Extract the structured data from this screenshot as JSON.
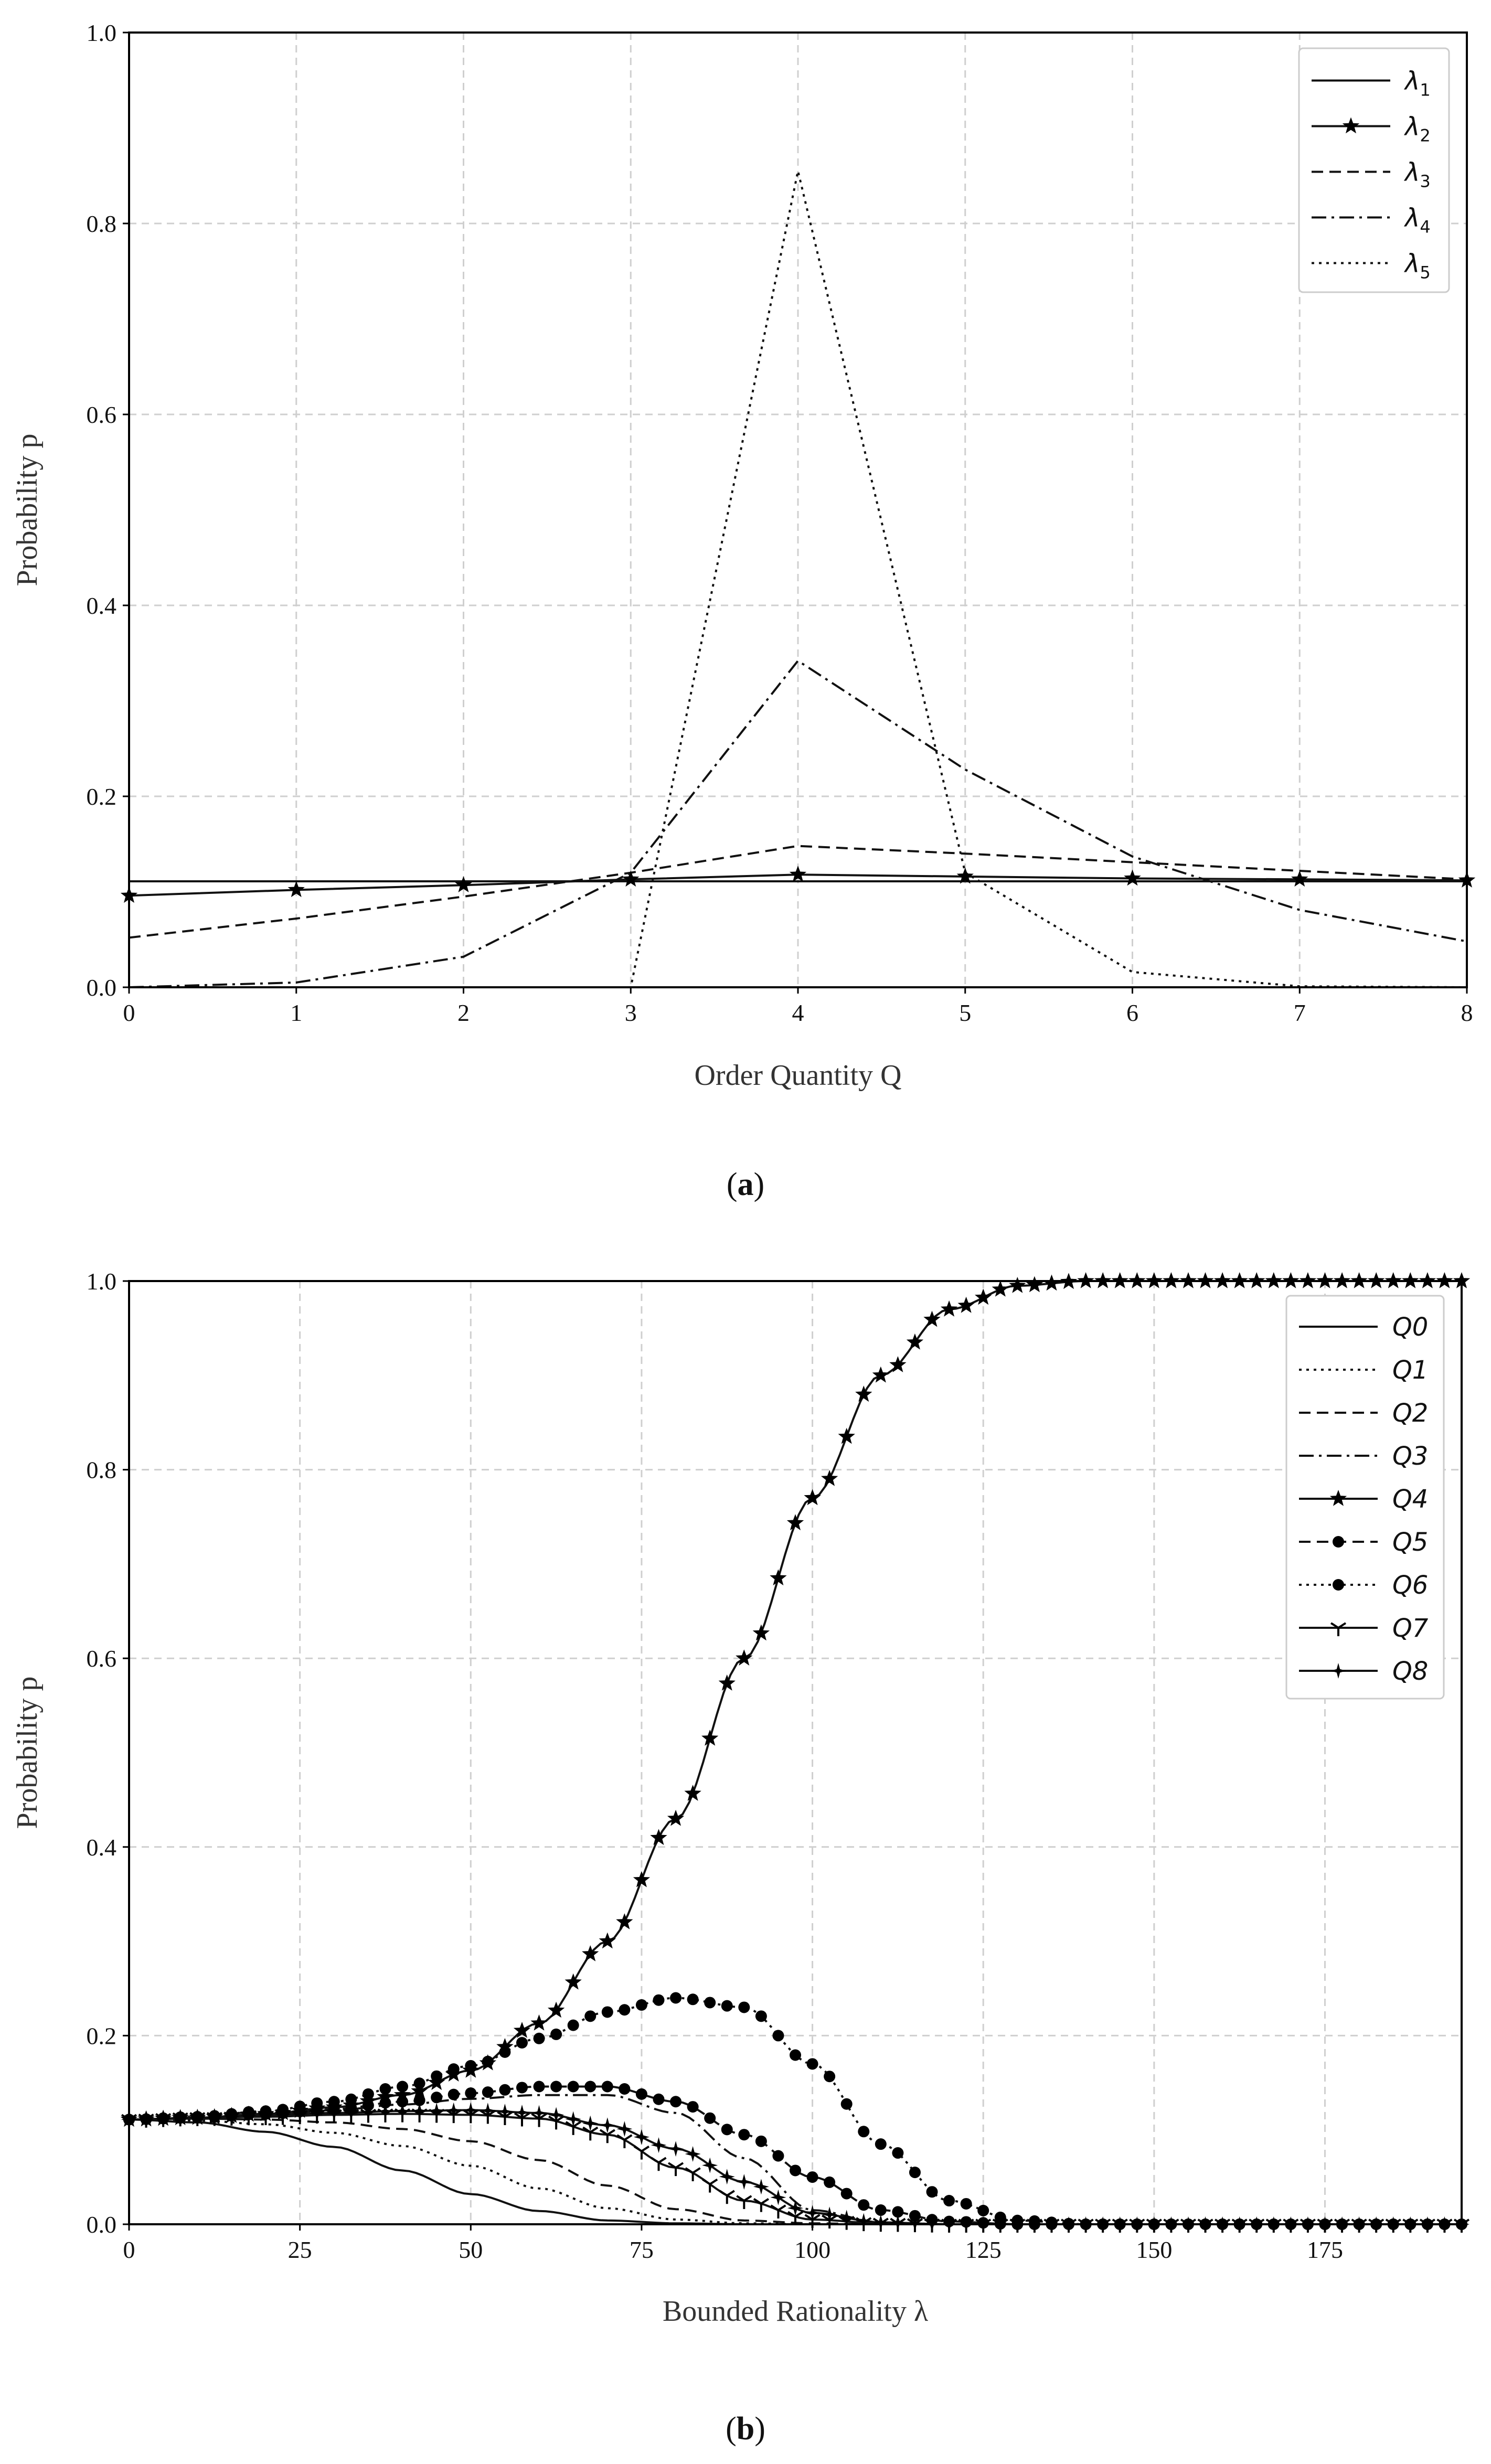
{
  "captions": {
    "a": "a",
    "b": "b"
  },
  "chart_data": [
    {
      "type": "line",
      "ylabel": "Probability p",
      "xlabel": "Order Quantity Q",
      "xlim": [
        0,
        8
      ],
      "ylim": [
        0,
        1.0
      ],
      "xticks": [
        "0",
        "1",
        "2",
        "3",
        "4",
        "5",
        "6",
        "7",
        "8"
      ],
      "yticks": [
        "0.0",
        "0.2",
        "0.4",
        "0.6",
        "0.8",
        "1.0"
      ],
      "grid": true,
      "legend_position": "top-right",
      "x": [
        0,
        1,
        2,
        3,
        4,
        5,
        6,
        7,
        8
      ],
      "series": [
        {
          "name": "λ",
          "sub": "1",
          "style": "solid",
          "marker": "none",
          "values": [
            0.111,
            0.111,
            0.111,
            0.111,
            0.111,
            0.111,
            0.111,
            0.111,
            0.111
          ]
        },
        {
          "name": "λ",
          "sub": "2",
          "style": "solid",
          "marker": "star",
          "values": [
            0.096,
            0.102,
            0.107,
            0.113,
            0.118,
            0.116,
            0.114,
            0.113,
            0.112
          ]
        },
        {
          "name": "λ",
          "sub": "3",
          "style": "dashed",
          "marker": "none",
          "values": [
            0.052,
            0.072,
            0.095,
            0.12,
            0.148,
            0.14,
            0.131,
            0.122,
            0.113
          ]
        },
        {
          "name": "λ",
          "sub": "4",
          "style": "dashdot",
          "marker": "none",
          "values": [
            0.0,
            0.005,
            0.032,
            0.12,
            0.342,
            0.228,
            0.137,
            0.081,
            0.048
          ]
        },
        {
          "name": "λ",
          "sub": "5",
          "style": "dotted",
          "marker": "none",
          "values": [
            0.0,
            0.0,
            0.0,
            0.0,
            0.855,
            0.12,
            0.016,
            0.001,
            0.0
          ]
        }
      ]
    },
    {
      "type": "line",
      "ylabel": "Probability p",
      "xlabel": "Bounded Rationality λ",
      "xlim": [
        0,
        195
      ],
      "ylim": [
        0,
        1.0
      ],
      "xticks": [
        "0",
        "25",
        "50",
        "75",
        "100",
        "125",
        "150",
        "175"
      ],
      "yticks": [
        "0.0",
        "0.2",
        "0.4",
        "0.6",
        "0.8",
        "1.0"
      ],
      "grid": true,
      "legend_position": "top-right",
      "x": [
        0,
        10,
        20,
        30,
        40,
        50,
        60,
        70,
        80,
        90,
        100,
        110,
        120,
        130,
        140,
        150,
        160,
        170,
        180,
        190
      ],
      "series": [
        {
          "name": "Q0",
          "style": "solid",
          "marker": "none",
          "values": [
            0.111,
            0.108,
            0.098,
            0.082,
            0.057,
            0.032,
            0.014,
            0.004,
            0.001,
            0,
            0,
            0,
            0,
            0,
            0,
            0,
            0,
            0,
            0,
            0
          ]
        },
        {
          "name": "Q1",
          "style": "dotted",
          "marker": "none",
          "values": [
            0.111,
            0.11,
            0.106,
            0.097,
            0.083,
            0.062,
            0.038,
            0.017,
            0.005,
            0.001,
            0,
            0,
            0,
            0,
            0,
            0,
            0,
            0,
            0,
            0
          ]
        },
        {
          "name": "Q2",
          "style": "dashed",
          "marker": "none",
          "values": [
            0.111,
            0.112,
            0.111,
            0.108,
            0.101,
            0.088,
            0.068,
            0.041,
            0.016,
            0.004,
            0.001,
            0,
            0,
            0,
            0,
            0,
            0,
            0,
            0,
            0
          ]
        },
        {
          "name": "Q3",
          "style": "dashdot",
          "marker": "none",
          "values": [
            0.111,
            0.113,
            0.116,
            0.121,
            0.127,
            0.133,
            0.137,
            0.137,
            0.118,
            0.07,
            0.015,
            0.002,
            0,
            0,
            0,
            0,
            0,
            0,
            0,
            0
          ]
        },
        {
          "name": "Q4",
          "style": "solid",
          "marker": "star",
          "values": [
            0.111,
            0.113,
            0.117,
            0.124,
            0.137,
            0.163,
            0.213,
            0.3,
            0.43,
            0.6,
            0.77,
            0.9,
            0.97,
            0.995,
            1.0,
            1.0,
            1.0,
            1.0,
            1.0,
            1.0
          ]
        },
        {
          "name": "Q5",
          "style": "dashed",
          "marker": "dot",
          "values": [
            0.111,
            0.113,
            0.117,
            0.122,
            0.13,
            0.139,
            0.146,
            0.146,
            0.13,
            0.095,
            0.05,
            0.015,
            0.003,
            0,
            0,
            0,
            0,
            0,
            0,
            0
          ]
        },
        {
          "name": "Q6",
          "style": "dotted",
          "marker": "dot",
          "values": [
            0.111,
            0.114,
            0.12,
            0.13,
            0.146,
            0.168,
            0.197,
            0.225,
            0.24,
            0.23,
            0.17,
            0.085,
            0.025,
            0.004,
            0,
            0,
            0,
            0,
            0,
            0
          ]
        },
        {
          "name": "Q7",
          "style": "solid",
          "marker": "tri",
          "values": [
            0.111,
            0.113,
            0.114,
            0.116,
            0.117,
            0.116,
            0.112,
            0.095,
            0.06,
            0.025,
            0.005,
            0.001,
            0,
            0,
            0,
            0,
            0,
            0,
            0,
            0
          ]
        },
        {
          "name": "Q8",
          "style": "solid",
          "marker": "star4",
          "values": [
            0.111,
            0.113,
            0.116,
            0.118,
            0.12,
            0.121,
            0.118,
            0.105,
            0.08,
            0.045,
            0.012,
            0.002,
            0,
            0,
            0,
            0,
            0,
            0,
            0,
            0
          ]
        }
      ]
    }
  ]
}
